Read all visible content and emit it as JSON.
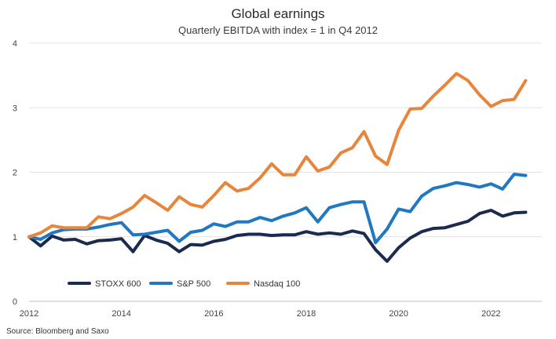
{
  "chart_data": {
    "type": "line",
    "title": "Global earnings",
    "subtitle": "Quarterly EBITDA with index = 1 in Q4 2012",
    "source": "Source: Bloomberg and Saxo",
    "xlabel": "",
    "ylabel": "",
    "xlim": [
      2012,
      2023.1
    ],
    "ylim": [
      0,
      4
    ],
    "x_ticks": [
      2012,
      2014,
      2016,
      2018,
      2020,
      2022
    ],
    "y_ticks": [
      0,
      1,
      2,
      3,
      4
    ],
    "grid": "horizontal",
    "legend_position": "bottom-left",
    "x": [
      2012.0,
      2012.25,
      2012.5,
      2012.75,
      2013.0,
      2013.25,
      2013.5,
      2013.75,
      2014.0,
      2014.25,
      2014.5,
      2014.75,
      2015.0,
      2015.25,
      2015.5,
      2015.75,
      2016.0,
      2016.25,
      2016.5,
      2016.75,
      2017.0,
      2017.25,
      2017.5,
      2017.75,
      2018.0,
      2018.25,
      2018.5,
      2018.75,
      2019.0,
      2019.25,
      2019.5,
      2019.75,
      2020.0,
      2020.25,
      2020.5,
      2020.75,
      2021.0,
      2021.25,
      2021.5,
      2021.75,
      2022.0,
      2022.25,
      2022.5,
      2022.75
    ],
    "series": [
      {
        "name": "STOXX 600",
        "color": "#1b2a4e",
        "values": [
          1.0,
          0.86,
          1.01,
          0.95,
          0.96,
          0.89,
          0.94,
          0.95,
          0.97,
          0.77,
          1.02,
          0.95,
          0.9,
          0.77,
          0.88,
          0.87,
          0.93,
          0.96,
          1.02,
          1.04,
          1.04,
          1.02,
          1.03,
          1.03,
          1.08,
          1.04,
          1.06,
          1.04,
          1.09,
          1.05,
          0.8,
          0.62,
          0.83,
          0.98,
          1.08,
          1.13,
          1.14,
          1.19,
          1.24,
          1.36,
          1.41,
          1.32,
          1.37,
          1.38
        ]
      },
      {
        "name": "S&P 500",
        "color": "#1f78c1",
        "values": [
          1.0,
          0.96,
          1.06,
          1.11,
          1.12,
          1.12,
          1.15,
          1.19,
          1.22,
          1.03,
          1.04,
          1.07,
          1.1,
          0.93,
          1.07,
          1.1,
          1.2,
          1.16,
          1.23,
          1.23,
          1.3,
          1.25,
          1.32,
          1.37,
          1.45,
          1.23,
          1.45,
          1.5,
          1.54,
          1.54,
          0.91,
          1.12,
          1.43,
          1.39,
          1.63,
          1.75,
          1.79,
          1.84,
          1.81,
          1.77,
          1.82,
          1.74,
          1.97,
          1.95
        ]
      },
      {
        "name": "Nasdaq 100",
        "color": "#e8853d",
        "values": [
          1.0,
          1.06,
          1.17,
          1.14,
          1.14,
          1.14,
          1.31,
          1.28,
          1.36,
          1.46,
          1.64,
          1.53,
          1.41,
          1.62,
          1.5,
          1.46,
          1.64,
          1.84,
          1.71,
          1.75,
          1.91,
          2.13,
          1.96,
          1.96,
          2.24,
          2.02,
          2.08,
          2.3,
          2.38,
          2.63,
          2.25,
          2.12,
          2.65,
          2.98,
          2.99,
          3.18,
          3.35,
          3.53,
          3.42,
          3.2,
          3.02,
          3.11,
          3.13,
          3.42
        ]
      }
    ]
  }
}
